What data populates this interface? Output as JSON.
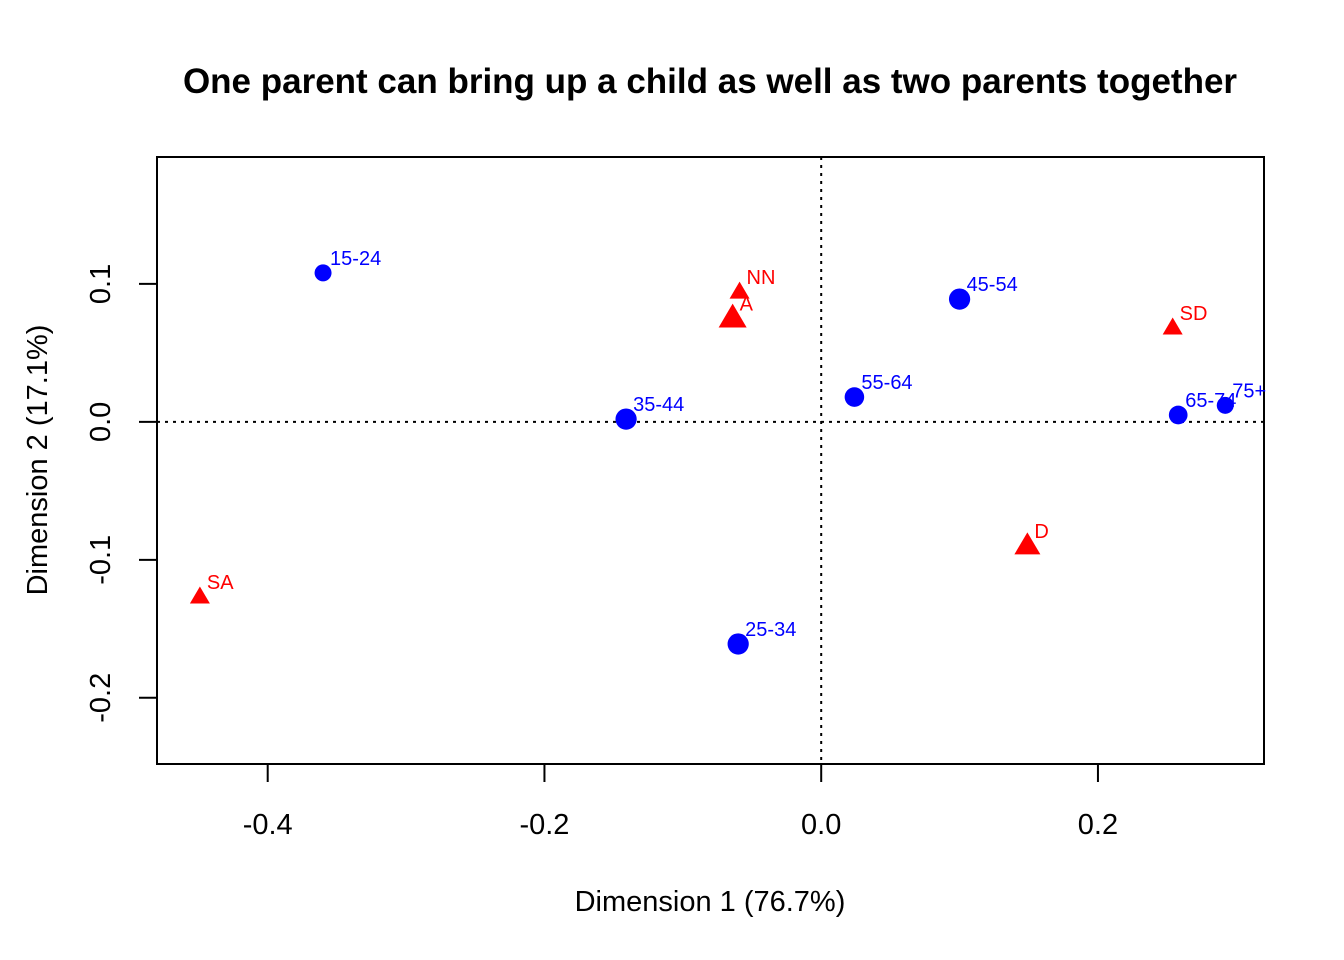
{
  "chart_data": {
    "type": "scatter",
    "title": "One parent can bring up a child as well as two parents together",
    "xlabel": "Dimension 1 (76.7%)",
    "ylabel": "Dimension 2 (17.1%)",
    "xlim": [
      -0.48,
      0.32
    ],
    "ylim": [
      -0.248,
      0.192
    ],
    "x_ticks": [
      -0.4,
      -0.2,
      0.0,
      0.2
    ],
    "x_tick_labels": [
      "-0.4",
      "-0.2",
      "0.0",
      "0.2"
    ],
    "y_ticks": [
      -0.2,
      -0.1,
      0.0,
      0.1
    ],
    "y_tick_labels": [
      "-0.2",
      "-0.1",
      "0.0",
      "0.1"
    ],
    "reference_lines": {
      "x": 0.0,
      "y": 0.0,
      "style": "dotted"
    },
    "grid": false,
    "colors": {
      "age_groups": "#0000ff",
      "responses": "#ff0000"
    },
    "series": [
      {
        "marker": "circle",
        "color": "#0000ff",
        "points": [
          {
            "label": "15-24",
            "x": -0.36,
            "y": 0.108,
            "size": 1.0
          },
          {
            "label": "25-34",
            "x": -0.06,
            "y": -0.161,
            "size": 1.25
          },
          {
            "label": "35-44",
            "x": -0.141,
            "y": 0.002,
            "size": 1.25
          },
          {
            "label": "45-54",
            "x": 0.1,
            "y": 0.089,
            "size": 1.25
          },
          {
            "label": "55-64",
            "x": 0.024,
            "y": 0.018,
            "size": 1.15
          },
          {
            "label": "65-74",
            "x": 0.258,
            "y": 0.005,
            "size": 1.1
          },
          {
            "label": "75+",
            "x": 0.292,
            "y": 0.012,
            "size": 1.0
          }
        ]
      },
      {
        "marker": "triangle",
        "color": "#ff0000",
        "points": [
          {
            "label": "NN",
            "x": -0.059,
            "y": 0.094,
            "size": 1.0
          },
          {
            "label": "A",
            "x": -0.064,
            "y": 0.075,
            "size": 1.4
          },
          {
            "label": "SD",
            "x": 0.254,
            "y": 0.068,
            "size": 1.0
          },
          {
            "label": "D",
            "x": 0.149,
            "y": -0.09,
            "size": 1.3
          },
          {
            "label": "SA",
            "x": -0.449,
            "y": -0.127,
            "size": 1.0
          }
        ]
      }
    ]
  }
}
